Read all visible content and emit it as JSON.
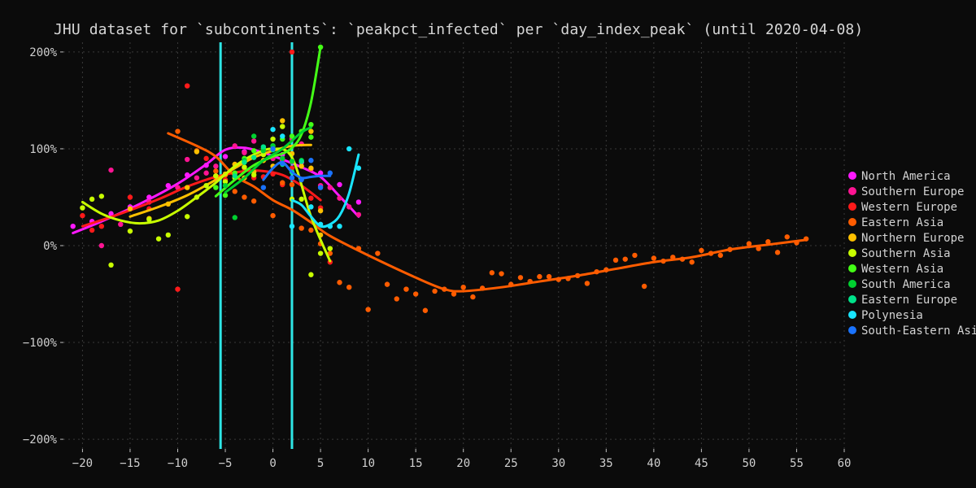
{
  "title": "JHU dataset for `subcontinents`: `peakpct_infected` per `day_index_peak` (until 2020-04-08)",
  "chart_data": {
    "type": "scatter",
    "xlabel": "",
    "ylabel": "",
    "xlim": [
      -22,
      60
    ],
    "ylim": [
      -210,
      210
    ],
    "xticks": [
      -20,
      -15,
      -10,
      -5,
      0,
      5,
      10,
      15,
      20,
      25,
      30,
      35,
      40,
      45,
      50,
      55,
      60
    ],
    "yticks": [
      -200,
      -100,
      0,
      100,
      200
    ],
    "ytick_labels": [
      "-200%",
      "-100%",
      "0%",
      "100%",
      "200%"
    ],
    "grid": true,
    "legend_position": "right",
    "vertical_lines": [
      {
        "x": -5.5,
        "color": "#2ee6e6"
      },
      {
        "x": 2.0,
        "color": "#2ee6e6"
      }
    ],
    "series": [
      {
        "name": "North America",
        "color": "#ff19ff",
        "points": [
          [
            -21,
            20
          ],
          [
            -19,
            25
          ],
          [
            -17,
            33
          ],
          [
            -15,
            40
          ],
          [
            -13,
            50
          ],
          [
            -11,
            62
          ],
          [
            -9,
            73
          ],
          [
            -7,
            83
          ],
          [
            -5,
            92
          ],
          [
            -3,
            97
          ],
          [
            -1,
            98
          ],
          [
            1,
            94
          ],
          [
            3,
            86
          ],
          [
            5,
            75
          ],
          [
            7,
            63
          ],
          [
            9,
            45
          ]
        ],
        "trend": [
          [
            -21,
            13
          ],
          [
            -18,
            25
          ],
          [
            -14,
            43
          ],
          [
            -10,
            64
          ],
          [
            -7,
            84
          ],
          [
            -5,
            99
          ],
          [
            -3,
            101
          ],
          [
            -1,
            96
          ],
          [
            1,
            89
          ],
          [
            3,
            81
          ],
          [
            5,
            71
          ],
          [
            7,
            51
          ],
          [
            9,
            30
          ]
        ]
      },
      {
        "name": "Southern Europe",
        "color": "#ff1493",
        "points": [
          [
            -18,
            0
          ],
          [
            -17,
            78
          ],
          [
            -16,
            22
          ],
          [
            -13,
            45
          ],
          [
            -10,
            60
          ],
          [
            -9,
            89
          ],
          [
            -8,
            70
          ],
          [
            -7,
            75
          ],
          [
            -6,
            82
          ],
          [
            -4,
            103
          ],
          [
            -3,
            96
          ],
          [
            -2,
            108
          ],
          [
            -1,
            100
          ],
          [
            0,
            90
          ],
          [
            1,
            88
          ],
          [
            2,
            110
          ],
          [
            3,
            105
          ],
          [
            4,
            79
          ],
          [
            5,
            62
          ],
          [
            6,
            60
          ],
          [
            7,
            49
          ],
          [
            8,
            40
          ],
          [
            9,
            32
          ]
        ],
        "trend": []
      },
      {
        "name": "Western Europe",
        "color": "#ff1a1a",
        "points": [
          [
            -20,
            31
          ],
          [
            -19,
            16
          ],
          [
            -18,
            20
          ],
          [
            -15,
            50
          ],
          [
            -13,
            38
          ],
          [
            -10,
            -45
          ],
          [
            -9,
            165
          ],
          [
            -7,
            90
          ],
          [
            -6,
            70
          ],
          [
            -5,
            68
          ],
          [
            -4,
            74
          ],
          [
            -3,
            80
          ],
          [
            -2,
            70
          ],
          [
            -1,
            71
          ],
          [
            0,
            74
          ],
          [
            1,
            63
          ],
          [
            2,
            200
          ],
          [
            2,
            80
          ],
          [
            4,
            49
          ],
          [
            5,
            39
          ],
          [
            6,
            -17
          ]
        ],
        "trend": [
          [
            -20,
            20
          ],
          [
            -16,
            33
          ],
          [
            -12,
            48
          ],
          [
            -9,
            61
          ],
          [
            -6,
            71
          ],
          [
            -3,
            77
          ],
          [
            -1,
            77
          ],
          [
            1,
            73
          ],
          [
            3,
            62
          ],
          [
            5,
            47
          ]
        ]
      },
      {
        "name": "Eastern Asia",
        "color": "#ff5c00",
        "points": [
          [
            -10,
            118
          ],
          [
            -8,
            98
          ],
          [
            -6,
            77
          ],
          [
            -5,
            73
          ],
          [
            -4,
            56
          ],
          [
            -3,
            50
          ],
          [
            -2,
            46
          ],
          [
            0,
            31
          ],
          [
            1,
            65
          ],
          [
            2,
            63
          ],
          [
            3,
            18
          ],
          [
            4,
            16
          ],
          [
            5,
            2
          ],
          [
            6,
            -8
          ],
          [
            7,
            -38
          ],
          [
            8,
            -43
          ],
          [
            9,
            -3
          ],
          [
            10,
            -66
          ],
          [
            11,
            -8
          ],
          [
            12,
            -40
          ],
          [
            13,
            -55
          ],
          [
            14,
            -45
          ],
          [
            15,
            -50
          ],
          [
            16,
            -67
          ],
          [
            17,
            -47
          ],
          [
            18,
            -45
          ],
          [
            19,
            -50
          ],
          [
            20,
            -43
          ],
          [
            21,
            -53
          ],
          [
            22,
            -44
          ],
          [
            23,
            -28
          ],
          [
            24,
            -29
          ],
          [
            25,
            -40
          ],
          [
            26,
            -33
          ],
          [
            27,
            -37
          ],
          [
            28,
            -32
          ],
          [
            29,
            -32
          ],
          [
            30,
            -35
          ],
          [
            31,
            -34
          ],
          [
            32,
            -31
          ],
          [
            33,
            -39
          ],
          [
            34,
            -27
          ],
          [
            35,
            -25
          ],
          [
            36,
            -15
          ],
          [
            37,
            -14
          ],
          [
            38,
            -10
          ],
          [
            39,
            -42
          ],
          [
            40,
            -13
          ],
          [
            41,
            -16
          ],
          [
            42,
            -12
          ],
          [
            43,
            -14
          ],
          [
            44,
            -17
          ],
          [
            45,
            -5
          ],
          [
            46,
            -8
          ],
          [
            47,
            -10
          ],
          [
            48,
            -4
          ],
          [
            50,
            2
          ],
          [
            51,
            -3
          ],
          [
            52,
            4
          ],
          [
            53,
            -7
          ],
          [
            54,
            9
          ],
          [
            55,
            3
          ],
          [
            56,
            7
          ]
        ],
        "trend": [
          [
            -11,
            116
          ],
          [
            -8,
            103
          ],
          [
            -6,
            92
          ],
          [
            -4,
            72
          ],
          [
            -2,
            61
          ],
          [
            0,
            47
          ],
          [
            2,
            37
          ],
          [
            4,
            24
          ],
          [
            6,
            10
          ],
          [
            10,
            -10
          ],
          [
            15,
            -33
          ],
          [
            18,
            -45
          ],
          [
            20,
            -47
          ],
          [
            24,
            -43
          ],
          [
            28,
            -37
          ],
          [
            32,
            -31
          ],
          [
            36,
            -24
          ],
          [
            40,
            -17
          ],
          [
            44,
            -12
          ],
          [
            48,
            -4
          ],
          [
            52,
            1
          ],
          [
            56,
            6
          ]
        ]
      },
      {
        "name": "Northern Europe",
        "color": "#ffc000",
        "points": [
          [
            -15,
            38
          ],
          [
            -13,
            28
          ],
          [
            -11,
            43
          ],
          [
            -9,
            60
          ],
          [
            -8,
            97
          ],
          [
            -6,
            72
          ],
          [
            -5,
            74
          ],
          [
            -4,
            84
          ],
          [
            -3,
            70
          ],
          [
            -2,
            76
          ],
          [
            -1,
            88
          ],
          [
            0,
            82
          ],
          [
            1,
            129
          ],
          [
            2,
            95
          ],
          [
            3,
            82
          ],
          [
            4,
            80
          ],
          [
            4,
            118
          ],
          [
            5,
            36
          ],
          [
            5,
            11
          ]
        ],
        "trend": [
          [
            -15,
            30
          ],
          [
            -12,
            40
          ],
          [
            -9,
            52
          ],
          [
            -6,
            68
          ],
          [
            -4,
            80
          ],
          [
            -2,
            91
          ],
          [
            0,
            98
          ],
          [
            2,
            103
          ],
          [
            4,
            104
          ]
        ]
      },
      {
        "name": "Southern Asia",
        "color": "#c8ff00",
        "points": [
          [
            -20,
            39
          ],
          [
            -19,
            48
          ],
          [
            -18,
            51
          ],
          [
            -17,
            -20
          ],
          [
            -15,
            15
          ],
          [
            -13,
            27
          ],
          [
            -12,
            7
          ],
          [
            -11,
            11
          ],
          [
            -9,
            30
          ],
          [
            -8,
            50
          ],
          [
            -7,
            62
          ],
          [
            -6,
            72
          ],
          [
            -5,
            66
          ],
          [
            -4,
            70
          ],
          [
            -3,
            81
          ],
          [
            -2,
            73
          ],
          [
            -1,
            94
          ],
          [
            0,
            110
          ],
          [
            1,
            123
          ],
          [
            2,
            48
          ],
          [
            3,
            48
          ],
          [
            4,
            -30
          ],
          [
            5,
            -8
          ],
          [
            6,
            -3
          ]
        ],
        "trend": [
          [
            -20,
            45
          ],
          [
            -18,
            33
          ],
          [
            -16,
            26
          ],
          [
            -14,
            23
          ],
          [
            -12,
            26
          ],
          [
            -10,
            36
          ],
          [
            -8,
            50
          ],
          [
            -6,
            65
          ],
          [
            -4,
            82
          ],
          [
            -2,
            94
          ],
          [
            0,
            100
          ],
          [
            2,
            91
          ],
          [
            4,
            30
          ],
          [
            6,
            -16
          ]
        ]
      },
      {
        "name": "Western Asia",
        "color": "#44ff16",
        "points": [
          [
            -6,
            60
          ],
          [
            -5,
            52
          ],
          [
            -4,
            75
          ],
          [
            -3,
            90
          ],
          [
            -2,
            98
          ],
          [
            -1,
            100
          ],
          [
            0,
            103
          ],
          [
            1,
            110
          ],
          [
            2,
            113
          ],
          [
            3,
            118
          ],
          [
            4,
            112
          ],
          [
            4,
            125
          ],
          [
            5,
            205
          ]
        ],
        "trend": [
          [
            -6,
            51
          ],
          [
            -4,
            68
          ],
          [
            -2,
            83
          ],
          [
            0,
            92
          ],
          [
            1,
            95
          ],
          [
            2,
            101
          ],
          [
            3,
            115
          ],
          [
            4,
            148
          ],
          [
            5,
            205
          ]
        ]
      },
      {
        "name": "South America",
        "color": "#00d030",
        "points": [
          [
            -5,
            62
          ],
          [
            -4,
            29
          ],
          [
            -3,
            88
          ],
          [
            -2,
            113
          ],
          [
            -1,
            98
          ],
          [
            0,
            103
          ],
          [
            1,
            90
          ],
          [
            2,
            87
          ],
          [
            3,
            88
          ]
        ],
        "trend": [
          [
            -5,
            55
          ],
          [
            -3,
            70
          ],
          [
            -1,
            88
          ],
          [
            1,
            100
          ],
          [
            3,
            117
          ],
          [
            4,
            122
          ]
        ]
      },
      {
        "name": "Eastern Europe",
        "color": "#00e38a",
        "points": [
          [
            -4,
            72
          ],
          [
            -3,
            86
          ],
          [
            -2,
            91
          ],
          [
            -1,
            102
          ],
          [
            0,
            99
          ],
          [
            1,
            84
          ],
          [
            2,
            76
          ],
          [
            3,
            87
          ]
        ],
        "trend": []
      },
      {
        "name": "Polynesia",
        "color": "#19e5ff",
        "points": [
          [
            0,
            120
          ],
          [
            1,
            113
          ],
          [
            2,
            20
          ],
          [
            4,
            40
          ],
          [
            5,
            22
          ],
          [
            6,
            20
          ],
          [
            7,
            20
          ],
          [
            8,
            100
          ],
          [
            9,
            80
          ]
        ],
        "trend": [
          [
            2,
            47
          ],
          [
            3,
            42
          ],
          [
            4,
            30
          ],
          [
            5,
            20
          ],
          [
            6,
            22
          ],
          [
            7,
            31
          ],
          [
            8,
            54
          ],
          [
            9,
            94
          ]
        ]
      },
      {
        "name": "South-Eastern Asia",
        "color": "#1a73ff",
        "points": [
          [
            -1,
            60
          ],
          [
            0,
            100
          ],
          [
            1,
            85
          ],
          [
            2,
            70
          ],
          [
            3,
            68
          ],
          [
            4,
            88
          ],
          [
            5,
            60
          ],
          [
            6,
            75
          ]
        ],
        "trend": [
          [
            -1,
            68
          ],
          [
            0,
            80
          ],
          [
            1,
            86
          ],
          [
            2,
            76
          ],
          [
            3,
            70
          ],
          [
            4,
            71
          ],
          [
            5,
            72
          ],
          [
            6,
            72
          ]
        ]
      }
    ]
  }
}
